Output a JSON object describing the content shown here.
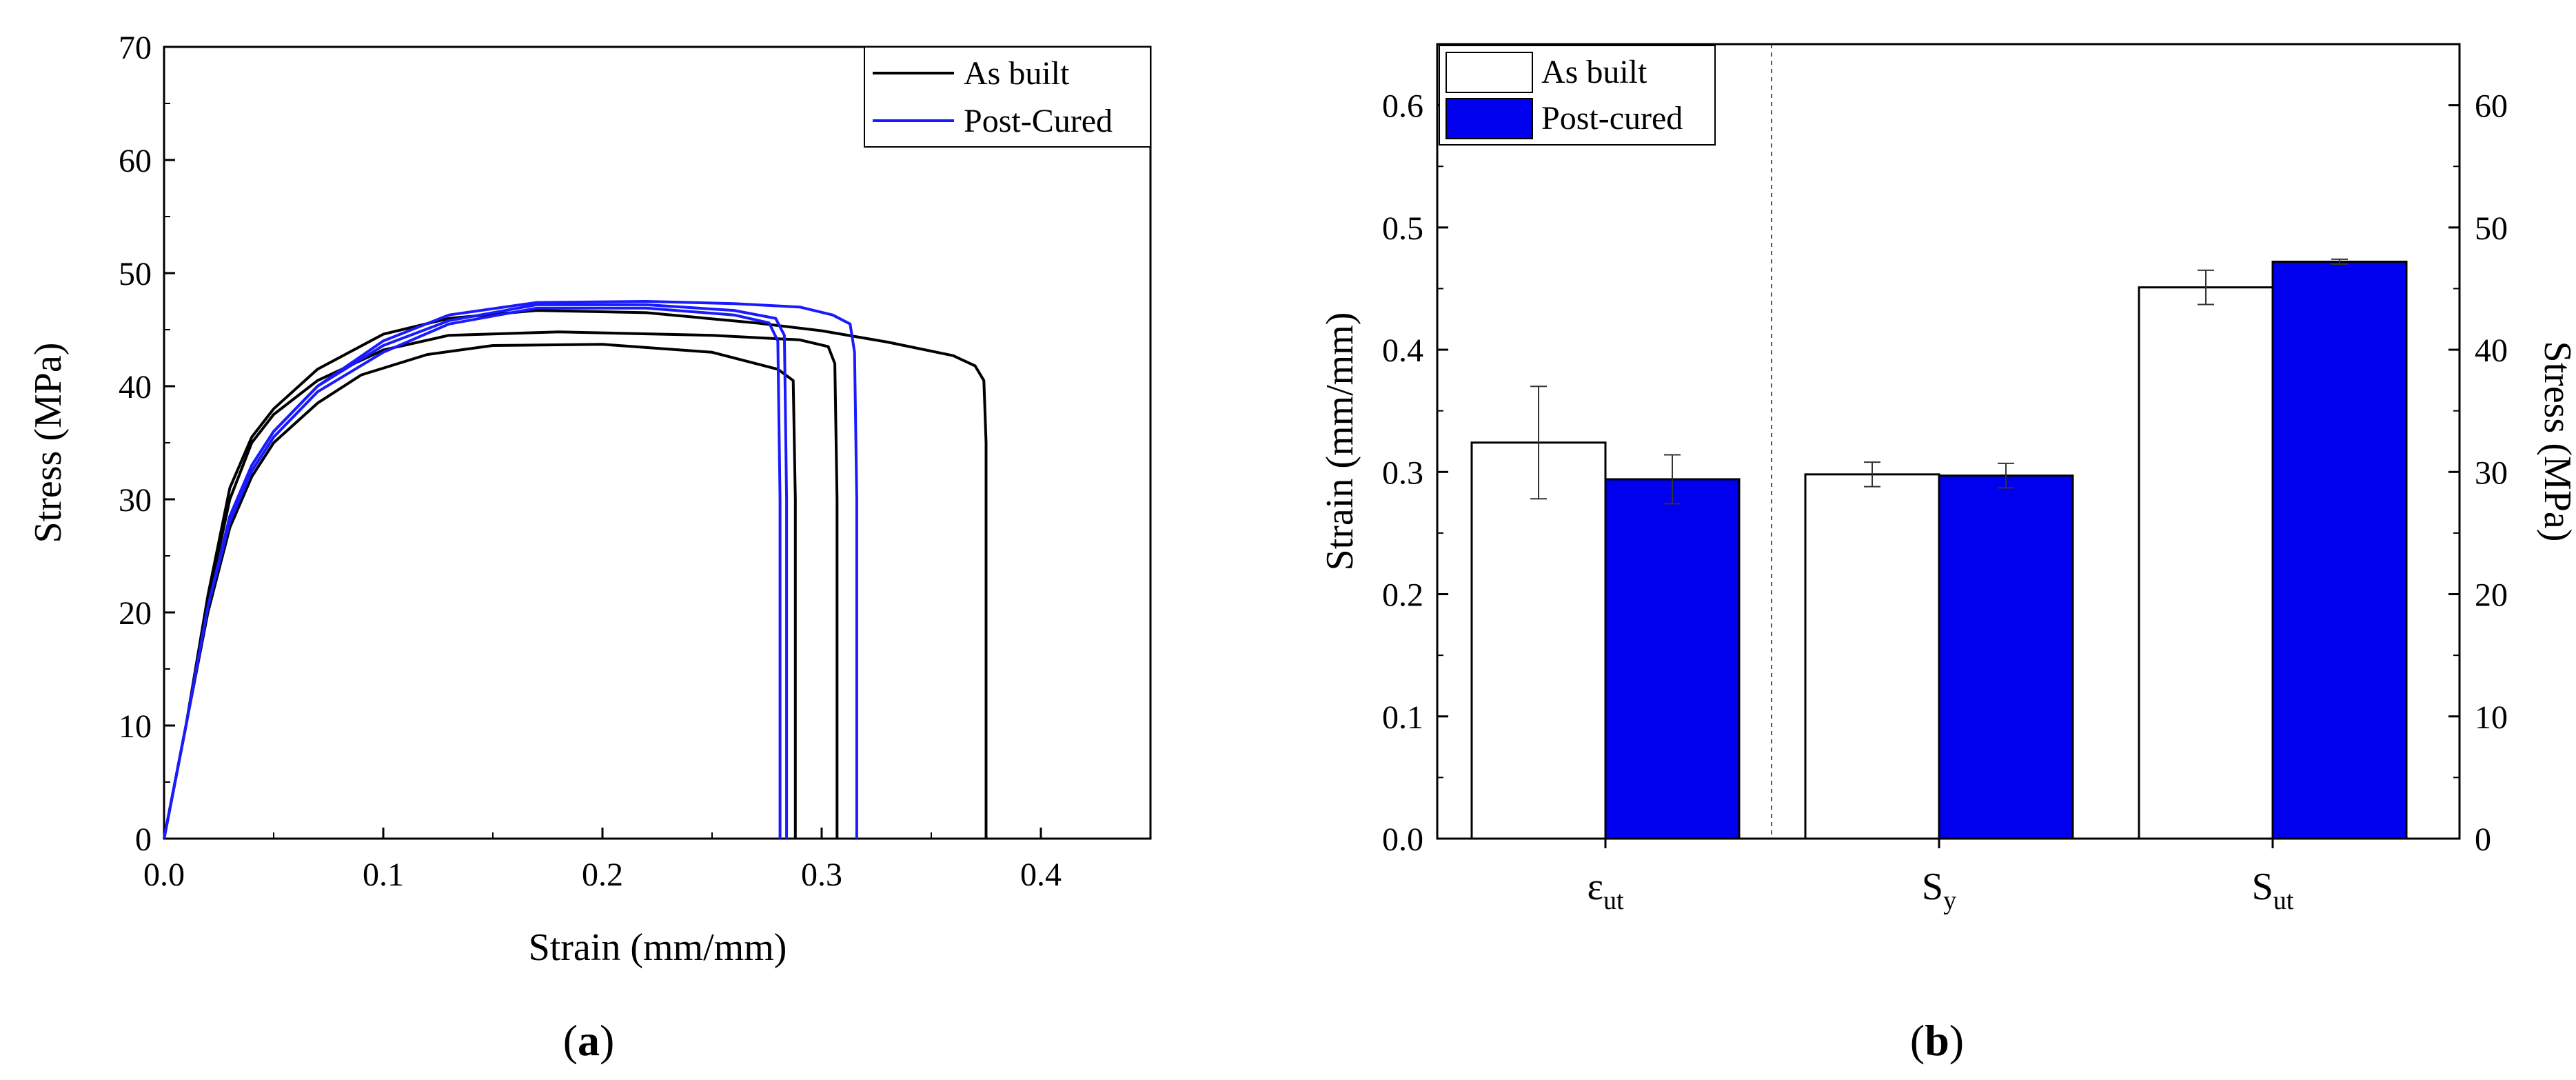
{
  "chart_data": [
    {
      "type": "line",
      "panel_label": "(a)",
      "xlabel": "Strain (mm/mm)",
      "ylabel": "Stress (MPa)",
      "xlim": [
        0.0,
        0.45
      ],
      "ylim": [
        0,
        70
      ],
      "xticks": [
        0.0,
        0.1,
        0.2,
        0.3,
        0.4
      ],
      "xtick_labels": [
        "0.0",
        "0.1",
        "0.2",
        "0.3",
        "0.4"
      ],
      "yticks": [
        0,
        10,
        20,
        30,
        40,
        50,
        60,
        70
      ],
      "ytick_labels": [
        "0",
        "10",
        "20",
        "30",
        "40",
        "50",
        "60",
        "70"
      ],
      "legend_position": "top-right",
      "legend": [
        {
          "label": "As built",
          "color": "#000000"
        },
        {
          "label": "Post-Cured",
          "color": "#1a1aff"
        }
      ],
      "series": [
        {
          "name": "As built",
          "color": "#000000",
          "points": [
            [
              0,
              0
            ],
            [
              0.01,
              10
            ],
            [
              0.02,
              20
            ],
            [
              0.03,
              27.5
            ],
            [
              0.04,
              32
            ],
            [
              0.05,
              35
            ],
            [
              0.07,
              38.5
            ],
            [
              0.09,
              41
            ],
            [
              0.12,
              42.8
            ],
            [
              0.15,
              43.6
            ],
            [
              0.2,
              43.7
            ],
            [
              0.25,
              43
            ],
            [
              0.28,
              41.5
            ],
            [
              0.287,
              40.5
            ],
            [
              0.288,
              30
            ],
            [
              0.288,
              0
            ]
          ]
        },
        {
          "name": "As built",
          "color": "#000000",
          "points": [
            [
              0,
              0
            ],
            [
              0.01,
              10
            ],
            [
              0.02,
              21
            ],
            [
              0.03,
              30
            ],
            [
              0.04,
              35
            ],
            [
              0.05,
              37.5
            ],
            [
              0.07,
              40.5
            ],
            [
              0.1,
              43.2
            ],
            [
              0.13,
              44.5
            ],
            [
              0.18,
              44.8
            ],
            [
              0.25,
              44.5
            ],
            [
              0.29,
              44.1
            ],
            [
              0.303,
              43.5
            ],
            [
              0.306,
              42
            ],
            [
              0.307,
              30
            ],
            [
              0.307,
              0
            ]
          ]
        },
        {
          "name": "As built",
          "color": "#000000",
          "points": [
            [
              0,
              0
            ],
            [
              0.01,
              10
            ],
            [
              0.02,
              21.5
            ],
            [
              0.03,
              31
            ],
            [
              0.04,
              35.5
            ],
            [
              0.05,
              38
            ],
            [
              0.07,
              41.5
            ],
            [
              0.1,
              44.6
            ],
            [
              0.13,
              46
            ],
            [
              0.17,
              46.7
            ],
            [
              0.22,
              46.5
            ],
            [
              0.27,
              45.6
            ],
            [
              0.3,
              44.9
            ],
            [
              0.33,
              43.9
            ],
            [
              0.36,
              42.7
            ],
            [
              0.37,
              41.8
            ],
            [
              0.374,
              40.5
            ],
            [
              0.375,
              35
            ],
            [
              0.375,
              0
            ]
          ]
        },
        {
          "name": "Post-Cured",
          "color": "#1a1aff",
          "points": [
            [
              0,
              0
            ],
            [
              0.01,
              10
            ],
            [
              0.02,
              20.5
            ],
            [
              0.03,
              28
            ],
            [
              0.04,
              32.5
            ],
            [
              0.05,
              35.5
            ],
            [
              0.07,
              39.5
            ],
            [
              0.1,
              43
            ],
            [
              0.13,
              45.5
            ],
            [
              0.17,
              46.9
            ],
            [
              0.22,
              46.9
            ],
            [
              0.26,
              46.3
            ],
            [
              0.276,
              45.6
            ],
            [
              0.28,
              44
            ],
            [
              0.281,
              30
            ],
            [
              0.281,
              0
            ]
          ]
        },
        {
          "name": "Post-Cured",
          "color": "#1a1aff",
          "points": [
            [
              0,
              0
            ],
            [
              0.01,
              10
            ],
            [
              0.02,
              20.5
            ],
            [
              0.03,
              28.5
            ],
            [
              0.04,
              33
            ],
            [
              0.05,
              36
            ],
            [
              0.07,
              40
            ],
            [
              0.1,
              43.6
            ],
            [
              0.13,
              45.8
            ],
            [
              0.17,
              47.2
            ],
            [
              0.22,
              47.2
            ],
            [
              0.26,
              46.7
            ],
            [
              0.279,
              46
            ],
            [
              0.283,
              44.5
            ],
            [
              0.284,
              30
            ],
            [
              0.284,
              0
            ]
          ]
        },
        {
          "name": "Post-Cured",
          "color": "#1a1aff",
          "points": [
            [
              0,
              0
            ],
            [
              0.01,
              10
            ],
            [
              0.02,
              20.5
            ],
            [
              0.03,
              28.5
            ],
            [
              0.04,
              33
            ],
            [
              0.05,
              36
            ],
            [
              0.07,
              40
            ],
            [
              0.1,
              44
            ],
            [
              0.13,
              46.3
            ],
            [
              0.17,
              47.4
            ],
            [
              0.22,
              47.5
            ],
            [
              0.26,
              47.3
            ],
            [
              0.29,
              47
            ],
            [
              0.305,
              46.3
            ],
            [
              0.313,
              45.5
            ],
            [
              0.315,
              43
            ],
            [
              0.316,
              30
            ],
            [
              0.316,
              0
            ]
          ]
        }
      ]
    },
    {
      "type": "bar",
      "panel_label": "(b)",
      "ylabel": "Strain (mm/mm)",
      "ylabel_right": "Stress (MPa)",
      "ylim": [
        0.0,
        0.65
      ],
      "ylim_right": [
        0,
        65
      ],
      "yticks": [
        0.0,
        0.1,
        0.2,
        0.3,
        0.4,
        0.5,
        0.6
      ],
      "ytick_labels": [
        "0.0",
        "0.1",
        "0.2",
        "0.3",
        "0.4",
        "0.5",
        "0.6"
      ],
      "yticks_right": [
        0,
        10,
        20,
        30,
        40,
        50,
        60
      ],
      "ytick_labels_right": [
        "0",
        "10",
        "20",
        "30",
        "40",
        "50",
        "60"
      ],
      "categories": [
        {
          "base": "ε",
          "sub": "ut",
          "axis": "left"
        },
        {
          "base": "S",
          "sub": "y",
          "axis": "right"
        },
        {
          "base": "S",
          "sub": "ut",
          "axis": "right"
        }
      ],
      "legend_position": "top-left",
      "series": [
        {
          "name": "As built",
          "fill": "#ffffff",
          "values": [
            0.324,
            29.8,
            45.1
          ],
          "errors": [
            0.046,
            1.0,
            1.4
          ]
        },
        {
          "name": "Post-cured",
          "fill": "#0000ee",
          "values": [
            0.294,
            29.7,
            47.2
          ],
          "errors": [
            0.02,
            1.0,
            0.2
          ]
        }
      ]
    }
  ],
  "captions": [
    {
      "open": "(",
      "letter": "a",
      "close": ")"
    },
    {
      "open": "(",
      "letter": "b",
      "close": ")"
    }
  ]
}
